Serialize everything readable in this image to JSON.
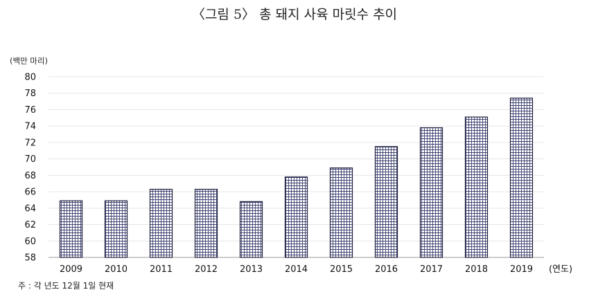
{
  "title": "〈그림 5〉 총 돼지 사육 마릿수 추이",
  "note": "주 : 각 년도 12월 1일 현재",
  "colors": {
    "bar_fill": "#c4c8dd",
    "bar_stroke": "#1e1e3c",
    "grid": "#e6e6e6",
    "axis": "#999999"
  },
  "chart_data": {
    "type": "bar",
    "title": "〈그림 5〉 총 돼지 사육 마릿수 추이",
    "ylabel": "(백만 마리)",
    "xlabel": "(연도)",
    "categories": [
      "2009",
      "2010",
      "2011",
      "2012",
      "2013",
      "2014",
      "2015",
      "2016",
      "2017",
      "2018",
      "2019"
    ],
    "values": [
      64.9,
      64.9,
      66.3,
      66.3,
      64.8,
      67.8,
      68.9,
      71.5,
      73.8,
      75.1,
      77.4
    ],
    "ylim": [
      58,
      80
    ],
    "yticks": [
      58,
      60,
      62,
      64,
      66,
      68,
      70,
      72,
      74,
      76,
      78,
      80
    ],
    "grid": true,
    "legend": "none"
  }
}
